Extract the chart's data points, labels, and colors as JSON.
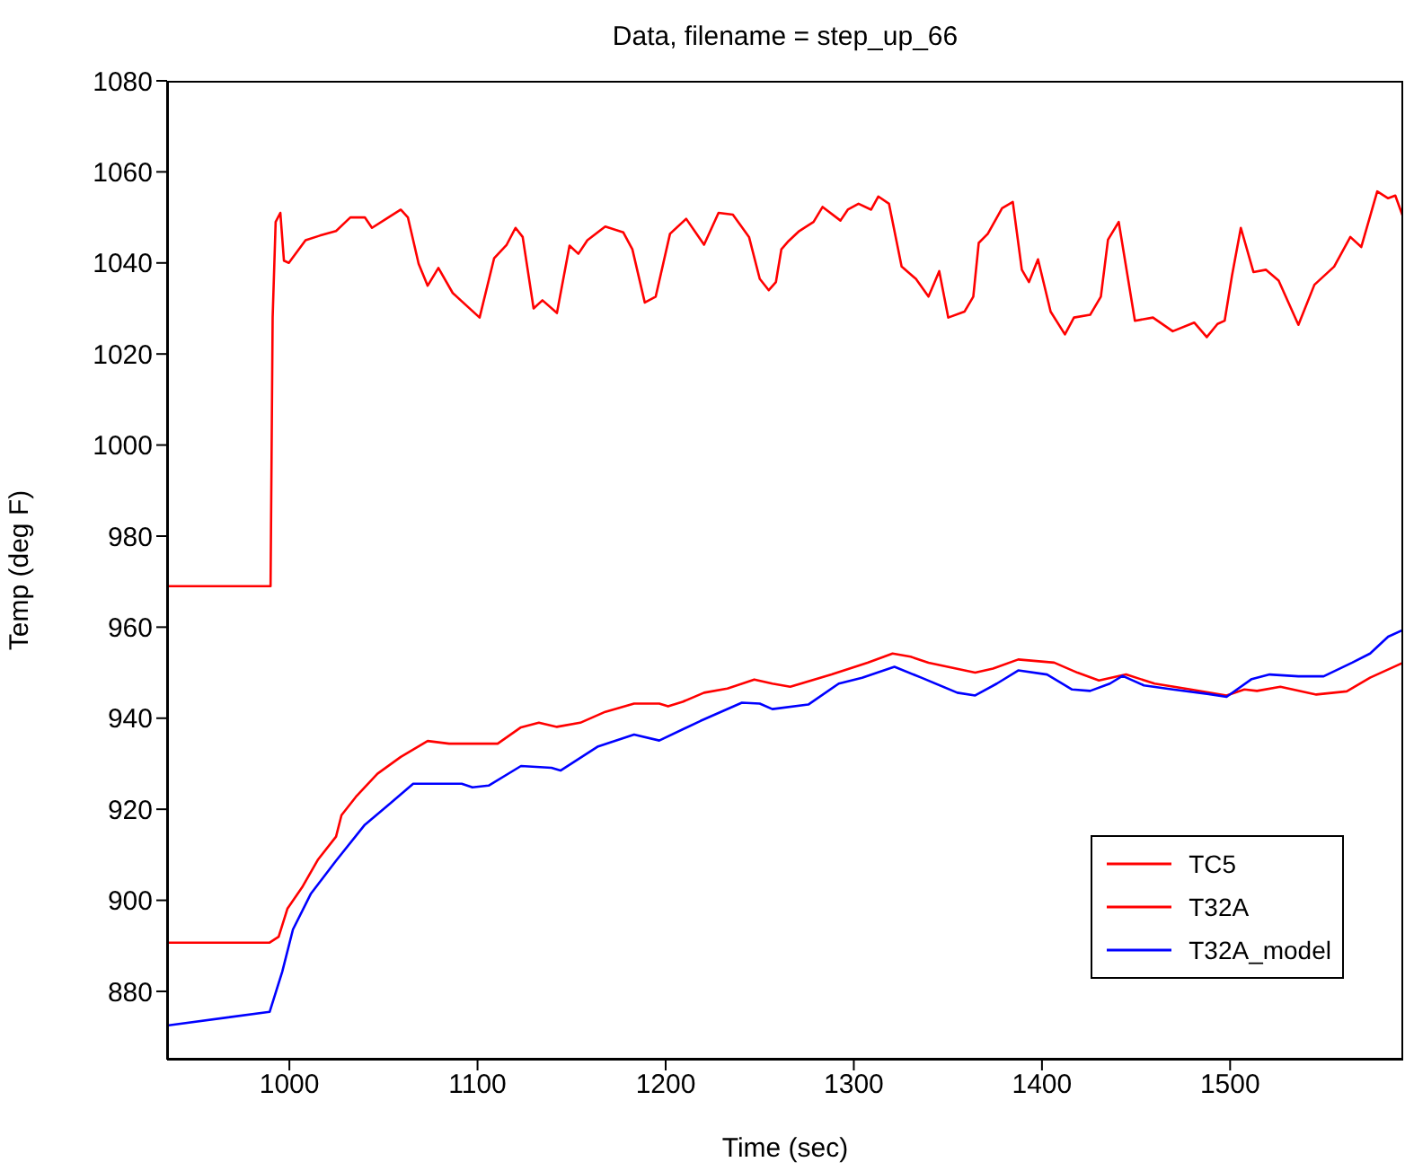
{
  "chart_data": {
    "type": "line",
    "title": "Data, filename = step_up_66",
    "xlabel": "Time (sec)",
    "ylabel": "Temp (deg F)",
    "xlim": [
      935,
      1592
    ],
    "xticks": [
      1000,
      1100,
      1200,
      1300,
      1400,
      1500
    ],
    "ylim": [
      865,
      1080
    ],
    "yticks": [
      880,
      900,
      920,
      940,
      960,
      980,
      1000,
      1020,
      1040,
      1060,
      1080
    ],
    "grid": false,
    "legend": "bottom right",
    "marker": "none",
    "line_style": "solid",
    "series": [
      {
        "name": "TC5",
        "color": "#ff0000",
        "x": [
          935,
          990,
          991.1,
          992.7,
          995.2,
          997.1,
          999.7,
          1008.6,
          1016.2,
          1024.8,
          1032.4,
          1040.1,
          1043.9,
          1051.5,
          1059.2,
          1063,
          1068.7,
          1073.5,
          1079.2,
          1086.8,
          1101.1,
          1108.8,
          1115.5,
          1120.2,
          1124,
          1129.8,
          1134.5,
          1142.2,
          1148.9,
          1153.6,
          1158.4,
          1167.9,
          1177.5,
          1182.3,
          1188.9,
          1194.7,
          1202.3,
          1210.9,
          1220.4,
          1228.1,
          1235.7,
          1244.3,
          1250,
          1254.8,
          1258.6,
          1261.5,
          1265.3,
          1271,
          1278.6,
          1283.4,
          1292.9,
          1296.8,
          1302.5,
          1309.2,
          1313,
          1318.7,
          1325.4,
          1333,
          1339.7,
          1345.4,
          1350.2,
          1358.8,
          1363.5,
          1366.4,
          1371.2,
          1378.8,
          1384.5,
          1389.3,
          1393.1,
          1397.9,
          1404.6,
          1412.2,
          1417,
          1425.6,
          1431.3,
          1435.1,
          1440.8,
          1449.4,
          1459,
          1469.5,
          1480.9,
          1487.6,
          1493.3,
          1497.1,
          1501,
          1505.7,
          1512.4,
          1519.1,
          1525.8,
          1536.3,
          1544.8,
          1555.3,
          1563.9,
          1569.7,
          1578.2,
          1584,
          1587.8,
          1592
        ],
        "values": [
          969,
          969,
          1028,
          1049,
          1051,
          1040.5,
          1040,
          1045,
          1046,
          1047,
          1050,
          1050,
          1047.7,
          1049.7,
          1051.7,
          1050,
          1039.8,
          1035,
          1038.9,
          1033.4,
          1028,
          1041,
          1044,
          1047.7,
          1045.7,
          1030,
          1031.8,
          1029,
          1043.8,
          1042,
          1045,
          1048,
          1046.7,
          1043,
          1031.3,
          1032.6,
          1046.4,
          1049.7,
          1044,
          1051,
          1050.6,
          1045.7,
          1036.5,
          1034,
          1035.8,
          1043,
          1044.8,
          1047,
          1049,
          1052.3,
          1049.3,
          1051.7,
          1053,
          1051.7,
          1054.6,
          1053,
          1039.2,
          1036.5,
          1032.6,
          1038.2,
          1028,
          1029.3,
          1032.6,
          1044.4,
          1046.4,
          1052,
          1053.4,
          1038.5,
          1035.8,
          1040.8,
          1029.3,
          1024.3,
          1028,
          1028.6,
          1032.6,
          1045.1,
          1049,
          1027.3,
          1028,
          1025,
          1026.9,
          1023.7,
          1026.6,
          1027.3,
          1037.2,
          1047.7,
          1038,
          1038.5,
          1036.1,
          1026.4,
          1035.2,
          1039.2,
          1045.7,
          1043.5,
          1055.7,
          1054.2,
          1054.8,
          1050
        ]
      },
      {
        "name": "T32A",
        "color": "#ff0000",
        "x": [
          935,
          989.5,
          994.3,
          999,
          1006.7,
          1015.3,
          1024.8,
          1027.7,
          1035.3,
          1046.8,
          1059.2,
          1073.5,
          1084.9,
          1110.7,
          1123.1,
          1132.6,
          1142.2,
          1154.6,
          1167.9,
          1183.2,
          1196.6,
          1201.3,
          1209,
          1220.4,
          1232.8,
          1247.1,
          1256.7,
          1266.2,
          1288.2,
          1307.3,
          1320.6,
          1330.2,
          1339.7,
          1364.5,
          1374,
          1387.4,
          1406.5,
          1418.9,
          1430.3,
          1444.7,
          1459.9,
          1479,
          1498.1,
          1507.6,
          1514.3,
          1526.7,
          1545.8,
          1562,
          1574.4,
          1592
        ],
        "values": [
          890.7,
          890.7,
          892,
          898.2,
          902.8,
          909,
          914,
          918.7,
          922.7,
          927.8,
          931.5,
          935,
          934.4,
          934.4,
          938,
          939,
          938.1,
          939,
          941.4,
          943.2,
          943.2,
          942.6,
          943.6,
          945.6,
          946.5,
          948.5,
          947.6,
          946.9,
          949.6,
          952.2,
          954.2,
          953.5,
          952.2,
          950,
          950.9,
          952.9,
          952.2,
          950,
          948.3,
          949.6,
          947.6,
          946.3,
          945,
          946.3,
          946,
          946.9,
          945.2,
          945.9,
          948.9,
          952.2
        ]
      },
      {
        "name": "T32A_model",
        "color": "#0000ff",
        "x": [
          935,
          989.5,
          996.2,
          1001.9,
          1011.5,
          1024.8,
          1040.1,
          1053.4,
          1065.8,
          1091.6,
          1097.3,
          1105.9,
          1123.1,
          1139.3,
          1144.1,
          1164.1,
          1183.2,
          1196.6,
          1218.5,
          1240.5,
          1250,
          1256.7,
          1275.8,
          1292,
          1304.4,
          1321.6,
          1335.9,
          1355,
          1364.5,
          1376,
          1387.4,
          1402.7,
          1416,
          1425.6,
          1436.1,
          1442.8,
          1454.2,
          1469.5,
          1488.6,
          1498.1,
          1511.5,
          1521,
          1536.3,
          1549.7,
          1564.9,
          1574.4,
          1584,
          1592
        ],
        "values": [
          872.5,
          875.5,
          884.3,
          893.6,
          901.5,
          908.7,
          916.6,
          921.2,
          925.6,
          925.6,
          924.8,
          925.2,
          929.5,
          929.1,
          928.5,
          933.8,
          936.4,
          935.1,
          939.4,
          943.4,
          943.2,
          942,
          943,
          947.6,
          948.9,
          951.3,
          948.9,
          945.6,
          945,
          947.6,
          950.5,
          949.6,
          946.3,
          946,
          947.6,
          949.3,
          947.2,
          946.3,
          945.3,
          944.7,
          948.6,
          949.6,
          949.2,
          949.2,
          952.2,
          954.2,
          957.9,
          959.4
        ]
      }
    ]
  }
}
